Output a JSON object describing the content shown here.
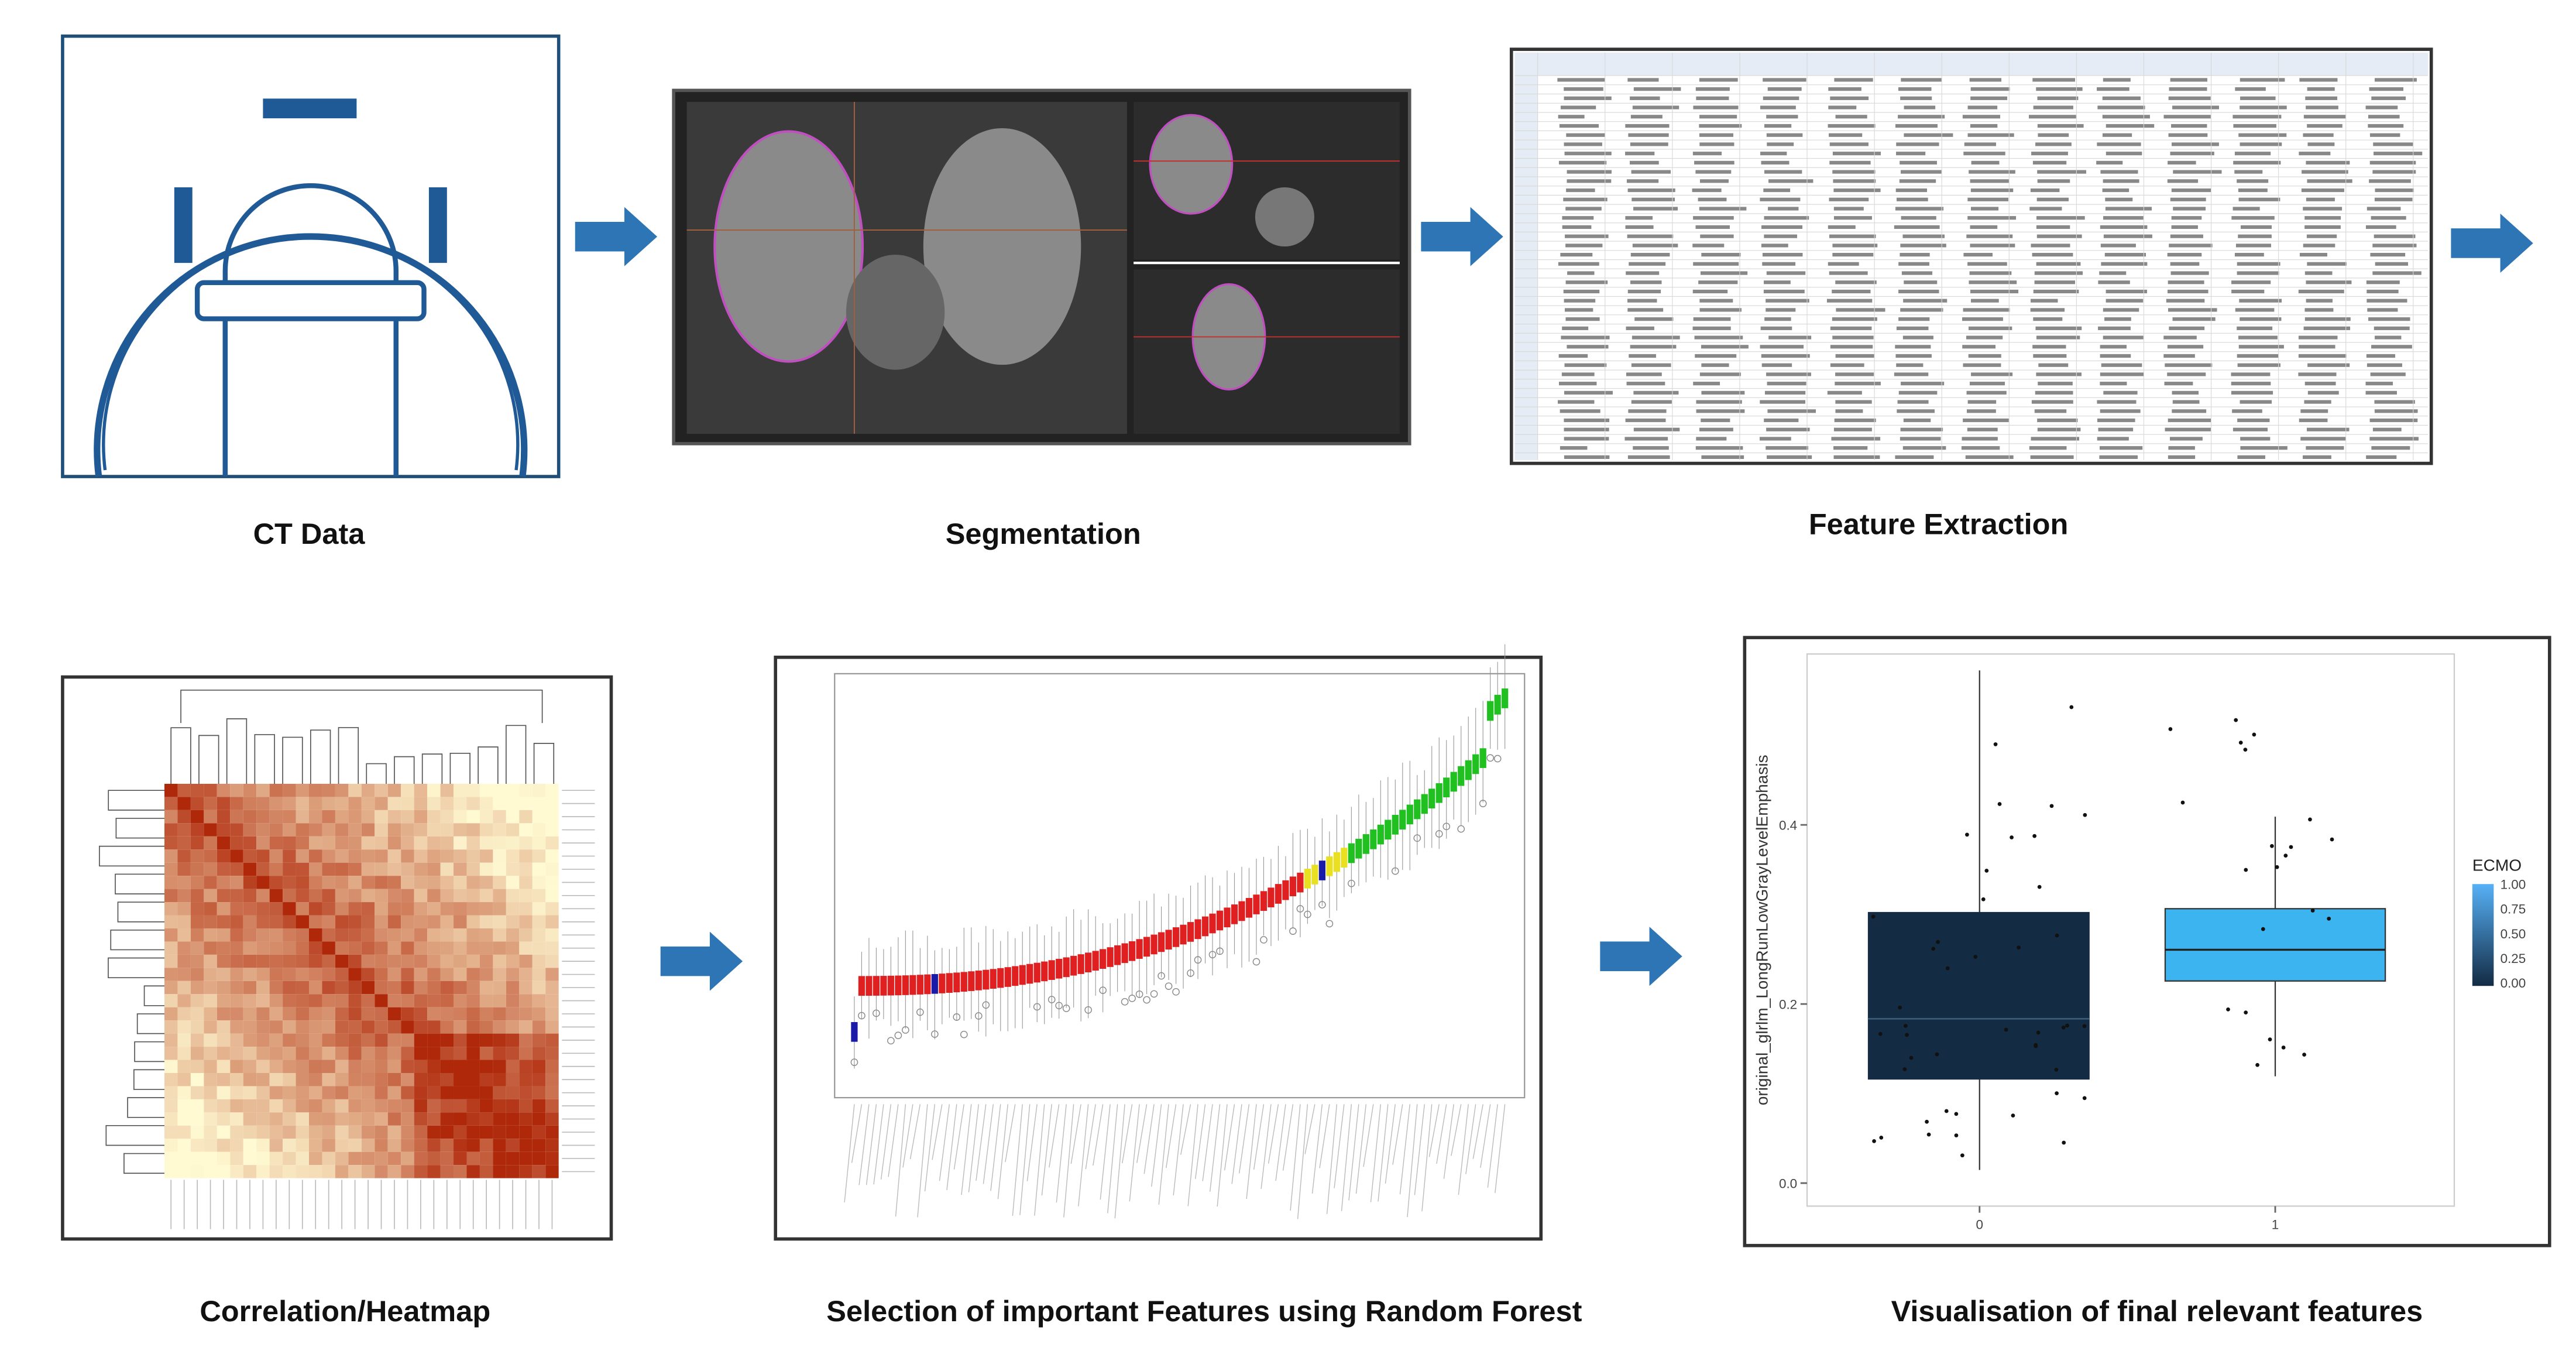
{
  "panels": {
    "ct": {
      "caption": "CT Data"
    },
    "segmentation": {
      "caption": "Segmentation"
    },
    "extraction": {
      "caption": "Feature Extraction"
    },
    "heatmap": {
      "caption": "Correlation/Heatmap"
    },
    "random_forest": {
      "caption": "Selection of important Features using Random Forest"
    },
    "visualisation": {
      "caption": "Visualisation of final relevant features",
      "y_label": "original_glrlm_LongRunLowGrayLevelEmphasis",
      "y_ticks": [
        "0.0",
        "0.2",
        "0.4"
      ],
      "x_ticks": [
        "0",
        "1"
      ],
      "legend_title": "ECMO",
      "legend_ticks": [
        "1.00",
        "0.75",
        "0.50",
        "0.25",
        "0.00"
      ]
    }
  }
}
